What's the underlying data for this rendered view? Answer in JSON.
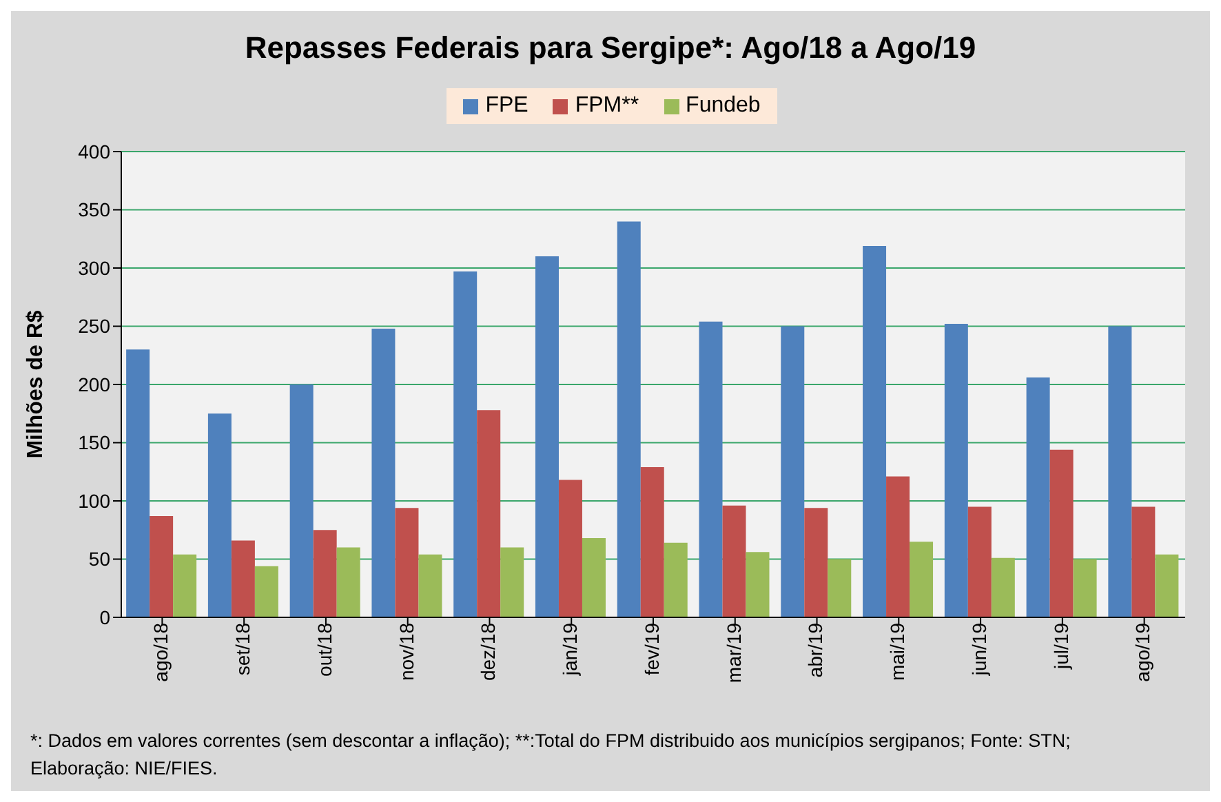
{
  "chart_data": {
    "type": "bar",
    "title": "Repasses Federais para Sergipe*: Ago/18 a Ago/19",
    "ylabel": "Milhões de R$",
    "categories": [
      "ago/18",
      "set/18",
      "out/18",
      "nov/18",
      "dez/18",
      "jan/19",
      "fev/19",
      "mar/19",
      "abr/19",
      "mai/19",
      "jun/19",
      "jul/19",
      "ago/19"
    ],
    "series": [
      {
        "name": "FPE",
        "color": "#4f81bd",
        "values": [
          230,
          175,
          200,
          248,
          297,
          310,
          340,
          254,
          250,
          319,
          252,
          206,
          250
        ]
      },
      {
        "name": "FPM**",
        "color": "#c0504d",
        "values": [
          87,
          66,
          75,
          94,
          178,
          118,
          129,
          96,
          94,
          121,
          95,
          144,
          95
        ]
      },
      {
        "name": "Fundeb",
        "color": "#9bbb59",
        "values": [
          54,
          44,
          60,
          54,
          60,
          68,
          64,
          56,
          50,
          65,
          51,
          50,
          54
        ]
      }
    ],
    "ylim": [
      0,
      400
    ],
    "yticks": [
      0,
      50,
      100,
      150,
      200,
      250,
      300,
      350,
      400
    ],
    "grid": "y",
    "legend": "top",
    "annotations": [
      "*: Dados em valores correntes (sem descontar a inflação); **:Total  do FPM distribuido aos municípios sergipanos; Fonte: STN;",
      "Elaboração: NIE/FIES."
    ]
  }
}
